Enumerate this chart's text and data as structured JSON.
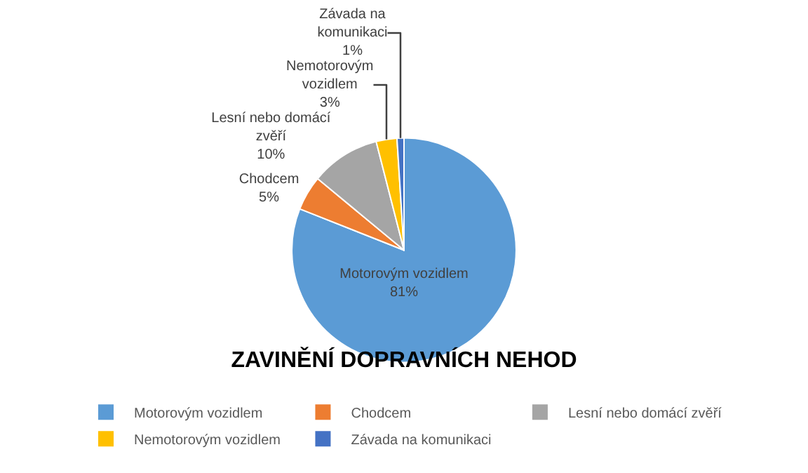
{
  "chart_data": {
    "type": "pie",
    "title": "ZAVINĚNÍ DOPRAVNÍCH NEHOD",
    "categories": [
      "Motorovým vozidlem",
      "Chodcem",
      "Lesní nebo domácí zvěří",
      "Nemotorovým vozidlem",
      "Závada na komunikaci"
    ],
    "values": [
      81,
      5,
      10,
      3,
      1
    ],
    "value_labels": [
      "81%",
      "5%",
      "10%",
      "3%",
      "1%"
    ],
    "colors": [
      "#5b9bd5",
      "#ed7d31",
      "#a5a5a5",
      "#ffc000",
      "#4472c4"
    ],
    "legend": "bottom"
  }
}
